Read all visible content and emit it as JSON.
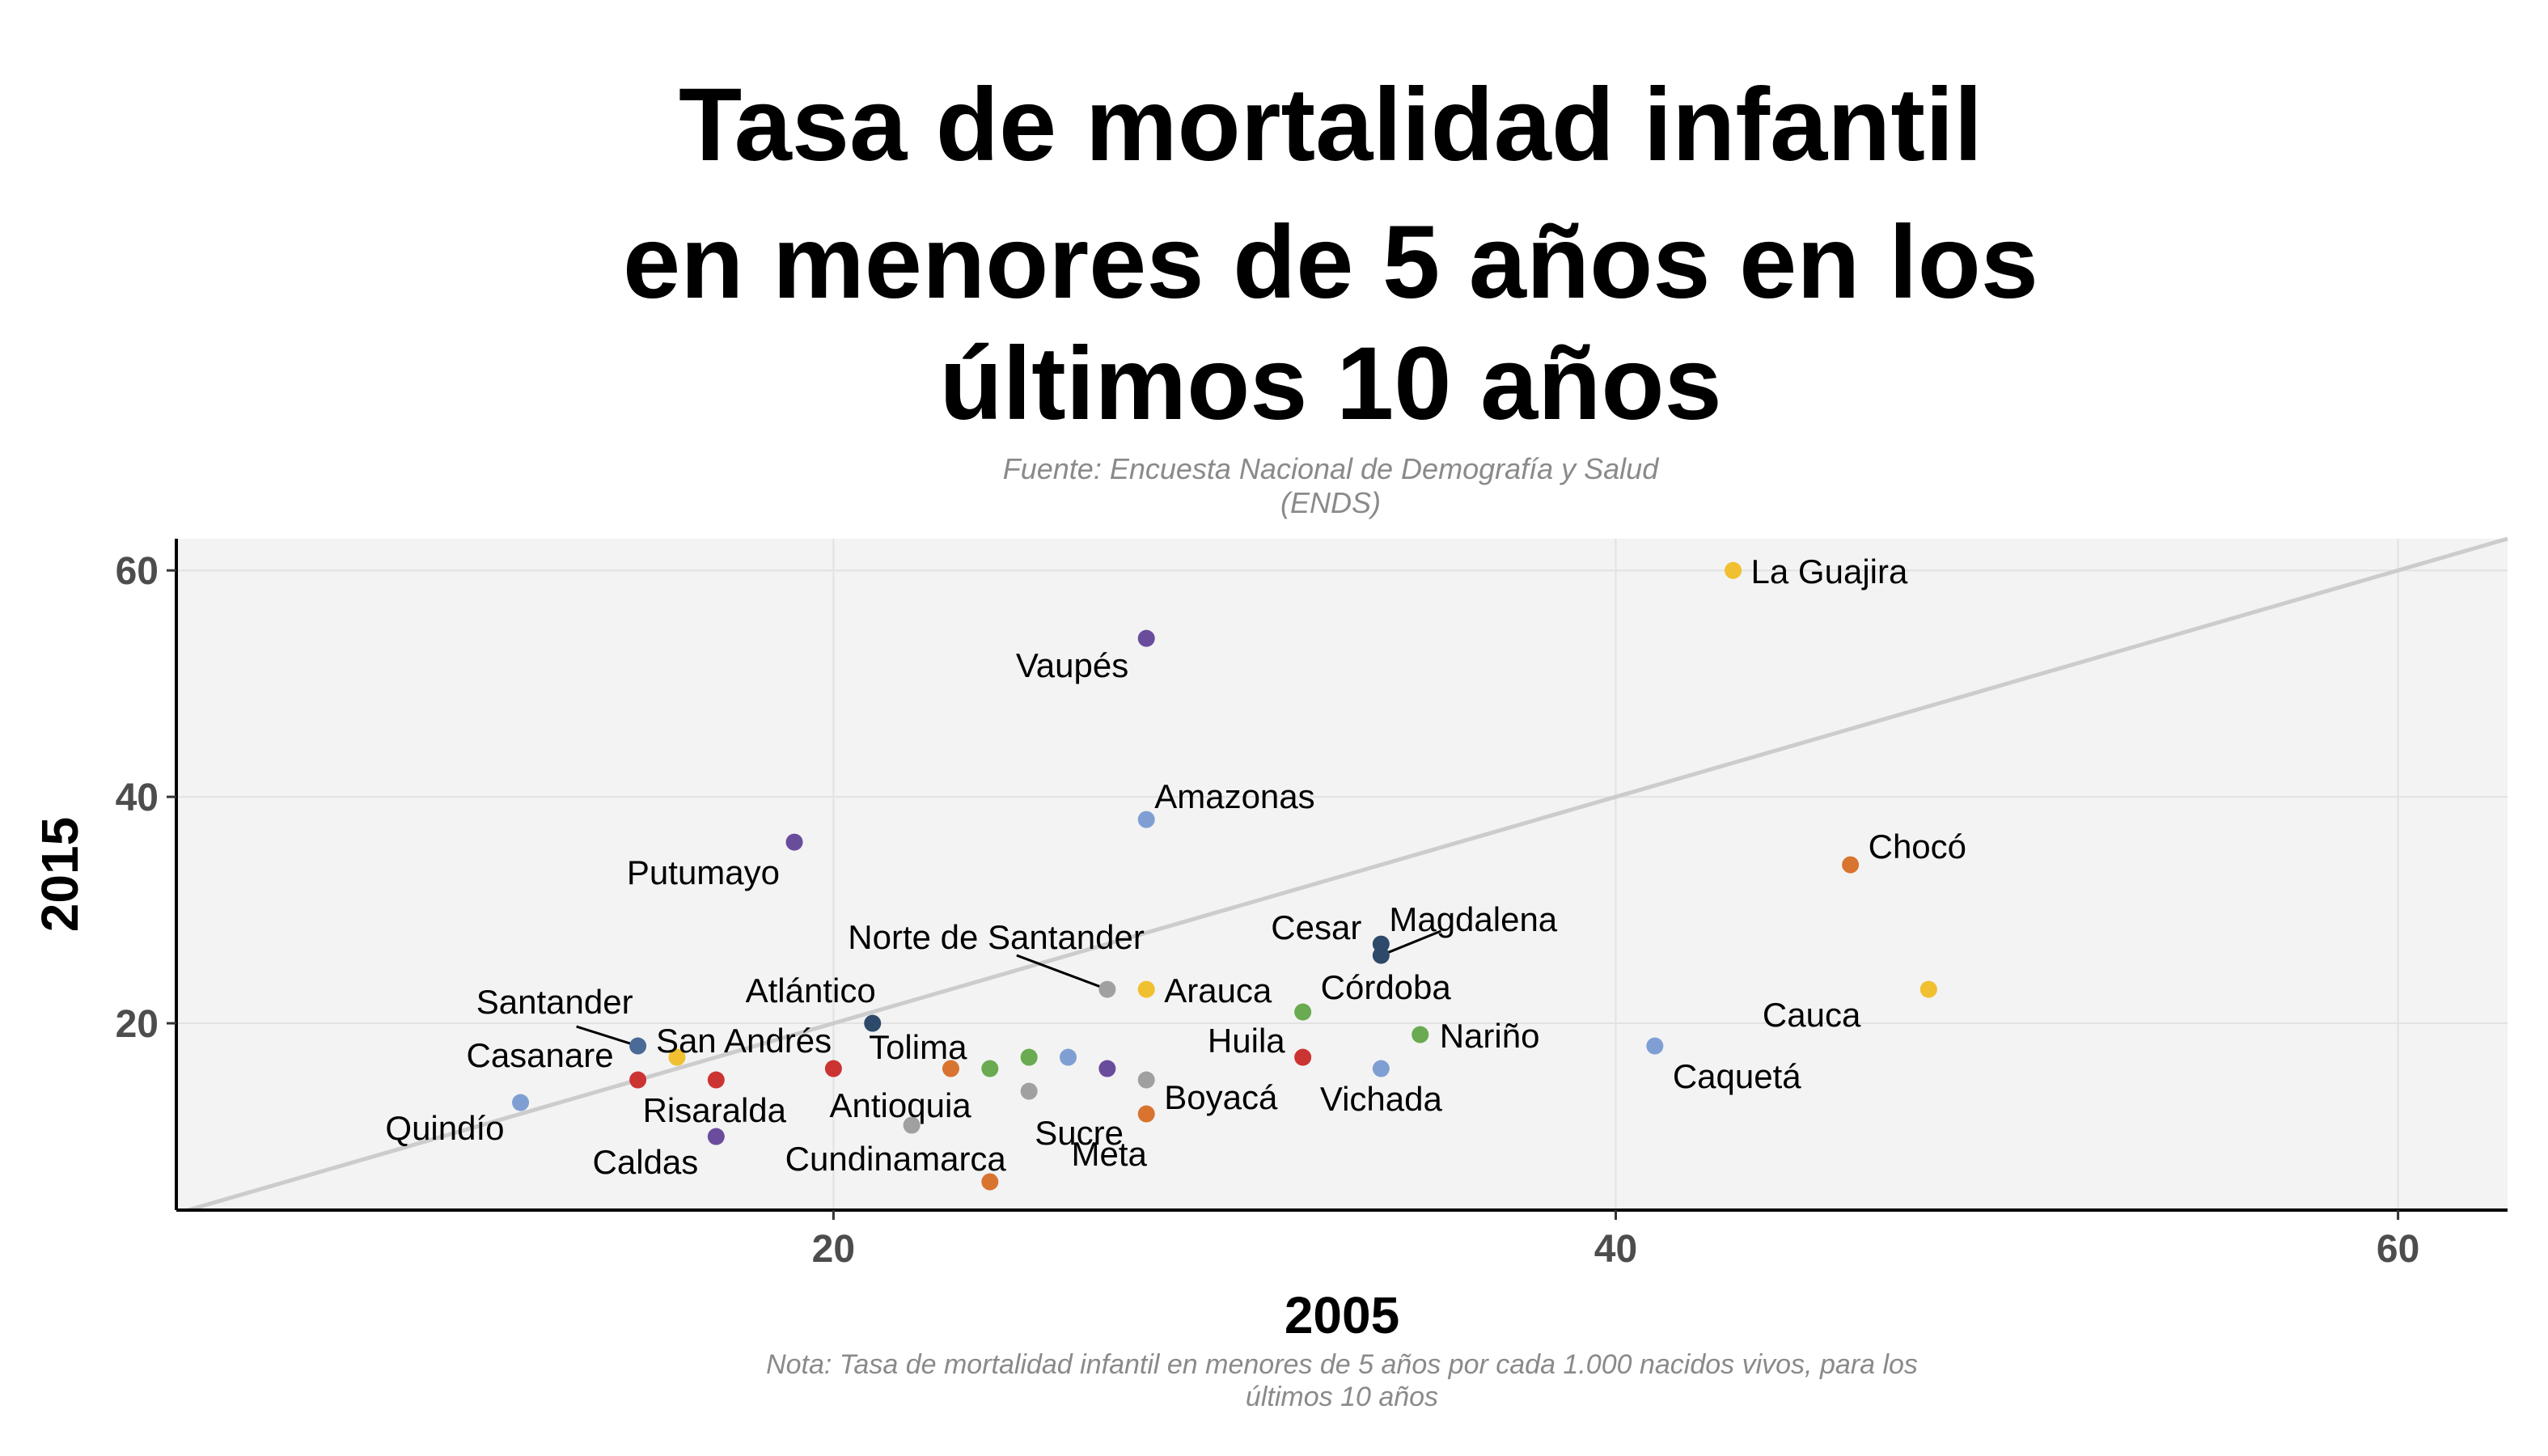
{
  "chart_data": {
    "type": "scatter",
    "title_lines": [
      "Tasa de mortalidad infantil",
      "en menores de 5 años en los",
      "últimos 10 años"
    ],
    "subtitle_lines": [
      "Fuente: Encuesta Nacional de Demografía y Salud",
      "(ENDS)"
    ],
    "xlabel": "2005",
    "ylabel": "2015",
    "caption_lines": [
      "Nota: Tasa de mortalidad infantil en menores de 5 años por cada 1.000 nacidos vivos, para los",
      "últimos 10 años"
    ],
    "xlim": [
      3.2,
      62.8
    ],
    "ylim": [
      3.5,
      62.8
    ],
    "x_ticks": [
      20,
      40,
      60
    ],
    "y_ticks": [
      20,
      40,
      60
    ],
    "grid": true,
    "reference_line": "y = x",
    "points": [
      {
        "name": "La Guajira",
        "x": 43,
        "y": 60,
        "color": "#f0c030"
      },
      {
        "name": "Vaupés",
        "x": 28,
        "y": 54,
        "color": "#6a4c9c"
      },
      {
        "name": "Amazonas",
        "x": 28,
        "y": 38,
        "color": "#7f9fd4"
      },
      {
        "name": "Putumayo",
        "x": 19,
        "y": 36,
        "color": "#6a4c9c"
      },
      {
        "name": "Chocó",
        "x": 46,
        "y": 34,
        "color": "#d87430"
      },
      {
        "name": "Cesar",
        "x": 34,
        "y": 27,
        "color": "#2e4a6a"
      },
      {
        "name": "Magdalena",
        "x": 34,
        "y": 26,
        "color": "#2e4a6a"
      },
      {
        "name": "Norte de Santander",
        "x": 27,
        "y": 23,
        "color": "#a0a0a0"
      },
      {
        "name": "Arauca",
        "x": 28,
        "y": 23,
        "color": "#f0c030"
      },
      {
        "name": "Cauca",
        "x": 48,
        "y": 23,
        "color": "#f0c030"
      },
      {
        "name": "Córdoba",
        "x": 32,
        "y": 21,
        "color": "#6aaa50"
      },
      {
        "name": "Atlántico",
        "x": 21,
        "y": 20,
        "color": "#2e4a6a"
      },
      {
        "name": "Nariño",
        "x": 35,
        "y": 19,
        "color": "#6aaa50"
      },
      {
        "name": "Santander",
        "x": 15,
        "y": 18,
        "color": "#4a6a98"
      },
      {
        "name": "Caquetá",
        "x": 41,
        "y": 18,
        "color": "#7f9fd4"
      },
      {
        "name": "San Andrés",
        "x": 16,
        "y": 17,
        "color": "#f0c030"
      },
      {
        "name": "Huila",
        "x": 32,
        "y": 17,
        "color": "#cc3333"
      },
      {
        "name": "",
        "x": 25,
        "y": 17,
        "color": "#6aaa50"
      },
      {
        "name": "",
        "x": 26,
        "y": 17,
        "color": "#7f9fd4"
      },
      {
        "name": "Tolima",
        "x": 23,
        "y": 16,
        "color": "#d87430"
      },
      {
        "name": "",
        "x": 24,
        "y": 16,
        "color": "#6aaa50"
      },
      {
        "name": "",
        "x": 20,
        "y": 16,
        "color": "#cc3333"
      },
      {
        "name": "",
        "x": 27,
        "y": 16,
        "color": "#6a4c9c"
      },
      {
        "name": "Vichada",
        "x": 34,
        "y": 16,
        "color": "#7f9fd4"
      },
      {
        "name": "Casanare",
        "x": 15,
        "y": 15,
        "color": "#cc3333"
      },
      {
        "name": "Risaralda",
        "x": 17,
        "y": 15,
        "color": "#cc3333"
      },
      {
        "name": "Boyacá",
        "x": 28,
        "y": 15,
        "color": "#a0a0a0"
      },
      {
        "name": "Sucre",
        "x": 25,
        "y": 14,
        "color": "#a0a0a0"
      },
      {
        "name": "Quindío",
        "x": 12,
        "y": 13,
        "color": "#7f9fd4"
      },
      {
        "name": "Meta",
        "x": 28,
        "y": 12,
        "color": "#d87430"
      },
      {
        "name": "Antioquia",
        "x": 22,
        "y": 11,
        "color": "#a0a0a0"
      },
      {
        "name": "Caldas",
        "x": 17,
        "y": 10,
        "color": "#6a4c9c"
      },
      {
        "name": "Cundinamarca",
        "x": 24,
        "y": 6,
        "color": "#d87430"
      }
    ]
  }
}
